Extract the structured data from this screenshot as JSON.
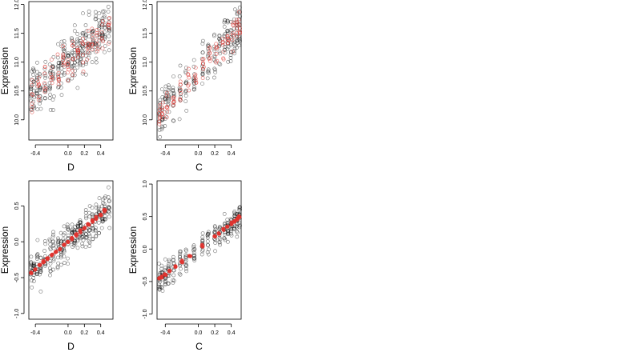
{
  "chart_data": [
    {
      "type": "scatter",
      "xlabel": "D",
      "ylabel": "Expression",
      "xticks": [
        -0.4,
        0.0,
        0.2,
        0.4
      ],
      "xtick_labels": [
        "-0.4",
        "0.0",
        "0.2",
        "0.4"
      ],
      "yticks": [
        10.0,
        10.5,
        11.0,
        11.5,
        12.0
      ],
      "ytick_labels": [
        "10.0",
        "10.5",
        "11.0",
        "11.5",
        "12.0"
      ],
      "xlim": [
        -0.48,
        0.55
      ],
      "ylim": [
        9.65,
        12.05
      ],
      "grid": false,
      "series": [
        {
          "color": "#000000",
          "marker": "open-circle",
          "columns": [
            -0.45,
            -0.42,
            -0.38,
            -0.34,
            -0.28,
            -0.22,
            -0.18,
            -0.12,
            -0.08,
            -0.05,
            0.0,
            0.05,
            0.08,
            0.12,
            0.15,
            0.18,
            0.22,
            0.26,
            0.3,
            0.34,
            0.38,
            0.42,
            0.45,
            0.5
          ],
          "fit": {
            "slope": 1.25,
            "intercept": 11.0
          },
          "spread": 0.42,
          "points_per_column": 13
        },
        {
          "color": "#e0332e",
          "marker": "open-circle",
          "columns": [
            -0.44,
            -0.36,
            -0.28,
            -0.2,
            -0.12,
            -0.06,
            0.0,
            0.06,
            0.12,
            0.18,
            0.24,
            0.3,
            0.36,
            0.42,
            0.5
          ],
          "fit": {
            "slope": 1.25,
            "intercept": 11.0
          },
          "spread": 0.3,
          "points_per_column": 7
        }
      ]
    },
    {
      "type": "scatter",
      "xlabel": "C",
      "ylabel": "Expression",
      "xticks": [
        -0.4,
        0.0,
        0.2,
        0.4
      ],
      "xtick_labels": [
        "-0.4",
        "0.0",
        "0.2",
        "0.4"
      ],
      "yticks": [
        10.0,
        10.5,
        11.0,
        11.5,
        12.0
      ],
      "ytick_labels": [
        "10.0",
        "10.5",
        "11.0",
        "11.5",
        "12.0"
      ],
      "xlim": [
        -0.5,
        0.52
      ],
      "ylim": [
        9.65,
        12.05
      ],
      "grid": false,
      "series": [
        {
          "color": "#000000",
          "marker": "open-circle",
          "columns": [
            -0.47,
            -0.44,
            -0.4,
            -0.36,
            -0.3,
            -0.22,
            -0.15,
            -0.05,
            0.05,
            0.12,
            0.2,
            0.26,
            0.32,
            0.36,
            0.4,
            0.44,
            0.47,
            0.5
          ],
          "fit": {
            "slope": 1.55,
            "intercept": 10.85
          },
          "spread": 0.38,
          "points_per_column": 13
        },
        {
          "color": "#e0332e",
          "marker": "open-circle",
          "columns": [
            -0.47,
            -0.43,
            -0.38,
            -0.3,
            -0.22,
            -0.12,
            -0.03,
            0.06,
            0.14,
            0.22,
            0.3,
            0.36,
            0.42,
            0.47,
            0.5
          ],
          "fit": {
            "slope": 1.55,
            "intercept": 10.85
          },
          "spread": 0.22,
          "points_per_column": 7
        }
      ]
    },
    {
      "type": "scatter",
      "xlabel": "D",
      "ylabel": "Expression",
      "xticks": [
        -0.4,
        0.0,
        0.2,
        0.4
      ],
      "xtick_labels": [
        "-0.4",
        "0.0",
        "0.2",
        "0.4"
      ],
      "yticks": [
        -1.0,
        -0.5,
        0.0,
        0.5
      ],
      "ytick_labels": [
        "-1.0",
        "-0.5",
        "0.0",
        "0.5"
      ],
      "xlim": [
        -0.48,
        0.55
      ],
      "ylim": [
        -1.08,
        0.85
      ],
      "grid": false,
      "series": [
        {
          "color": "#000000",
          "marker": "open-circle",
          "columns": [
            -0.45,
            -0.42,
            -0.38,
            -0.34,
            -0.28,
            -0.22,
            -0.18,
            -0.12,
            -0.08,
            -0.05,
            0.0,
            0.05,
            0.08,
            0.12,
            0.15,
            0.18,
            0.22,
            0.26,
            0.3,
            0.34,
            0.38,
            0.42,
            0.45,
            0.5
          ],
          "fit": {
            "slope": 0.95,
            "intercept": 0.0
          },
          "spread": 0.28,
          "points_per_column": 13
        },
        {
          "color": "#e0332e",
          "marker": "filled-circle",
          "columns": [
            -0.45,
            -0.4,
            -0.35,
            -0.3,
            -0.25,
            -0.2,
            -0.15,
            -0.1,
            -0.05,
            0.0,
            0.05,
            0.1,
            0.15,
            0.2,
            0.25,
            0.3,
            0.35,
            0.4,
            0.45
          ],
          "fit": {
            "slope": 0.95,
            "intercept": 0.0
          },
          "spread": 0.02,
          "points_per_column": 3
        }
      ]
    },
    {
      "type": "scatter",
      "xlabel": "C",
      "ylabel": "Expression",
      "xticks": [
        -0.4,
        0.0,
        0.2,
        0.4
      ],
      "xtick_labels": [
        "-0.4",
        "0.0",
        "0.2",
        "0.4"
      ],
      "yticks": [
        -1.0,
        -0.5,
        0.0,
        0.5,
        1.0
      ],
      "ytick_labels": [
        "-1.0",
        "-0.5",
        "0.0",
        "0.5",
        "1.0"
      ],
      "xlim": [
        -0.5,
        0.52
      ],
      "ylim": [
        -1.08,
        1.05
      ],
      "grid": false,
      "series": [
        {
          "color": "#000000",
          "marker": "open-circle",
          "columns": [
            -0.47,
            -0.44,
            -0.4,
            -0.36,
            -0.3,
            -0.22,
            -0.15,
            -0.05,
            0.05,
            0.12,
            0.2,
            0.26,
            0.32,
            0.36,
            0.4,
            0.44,
            0.47,
            0.5
          ],
          "fit": {
            "slope": 0.98,
            "intercept": 0.0
          },
          "spread": 0.22,
          "points_per_column": 13
        },
        {
          "color": "#e0332e",
          "marker": "filled-circle",
          "columns": [
            -0.47,
            -0.44,
            -0.4,
            -0.35,
            -0.28,
            -0.2,
            -0.1,
            0.05,
            0.2,
            0.25,
            0.3,
            0.35,
            0.4,
            0.44,
            0.47,
            0.5
          ],
          "fit": {
            "slope": 0.98,
            "intercept": 0.0
          },
          "spread": 0.02,
          "points_per_column": 3
        }
      ]
    }
  ]
}
